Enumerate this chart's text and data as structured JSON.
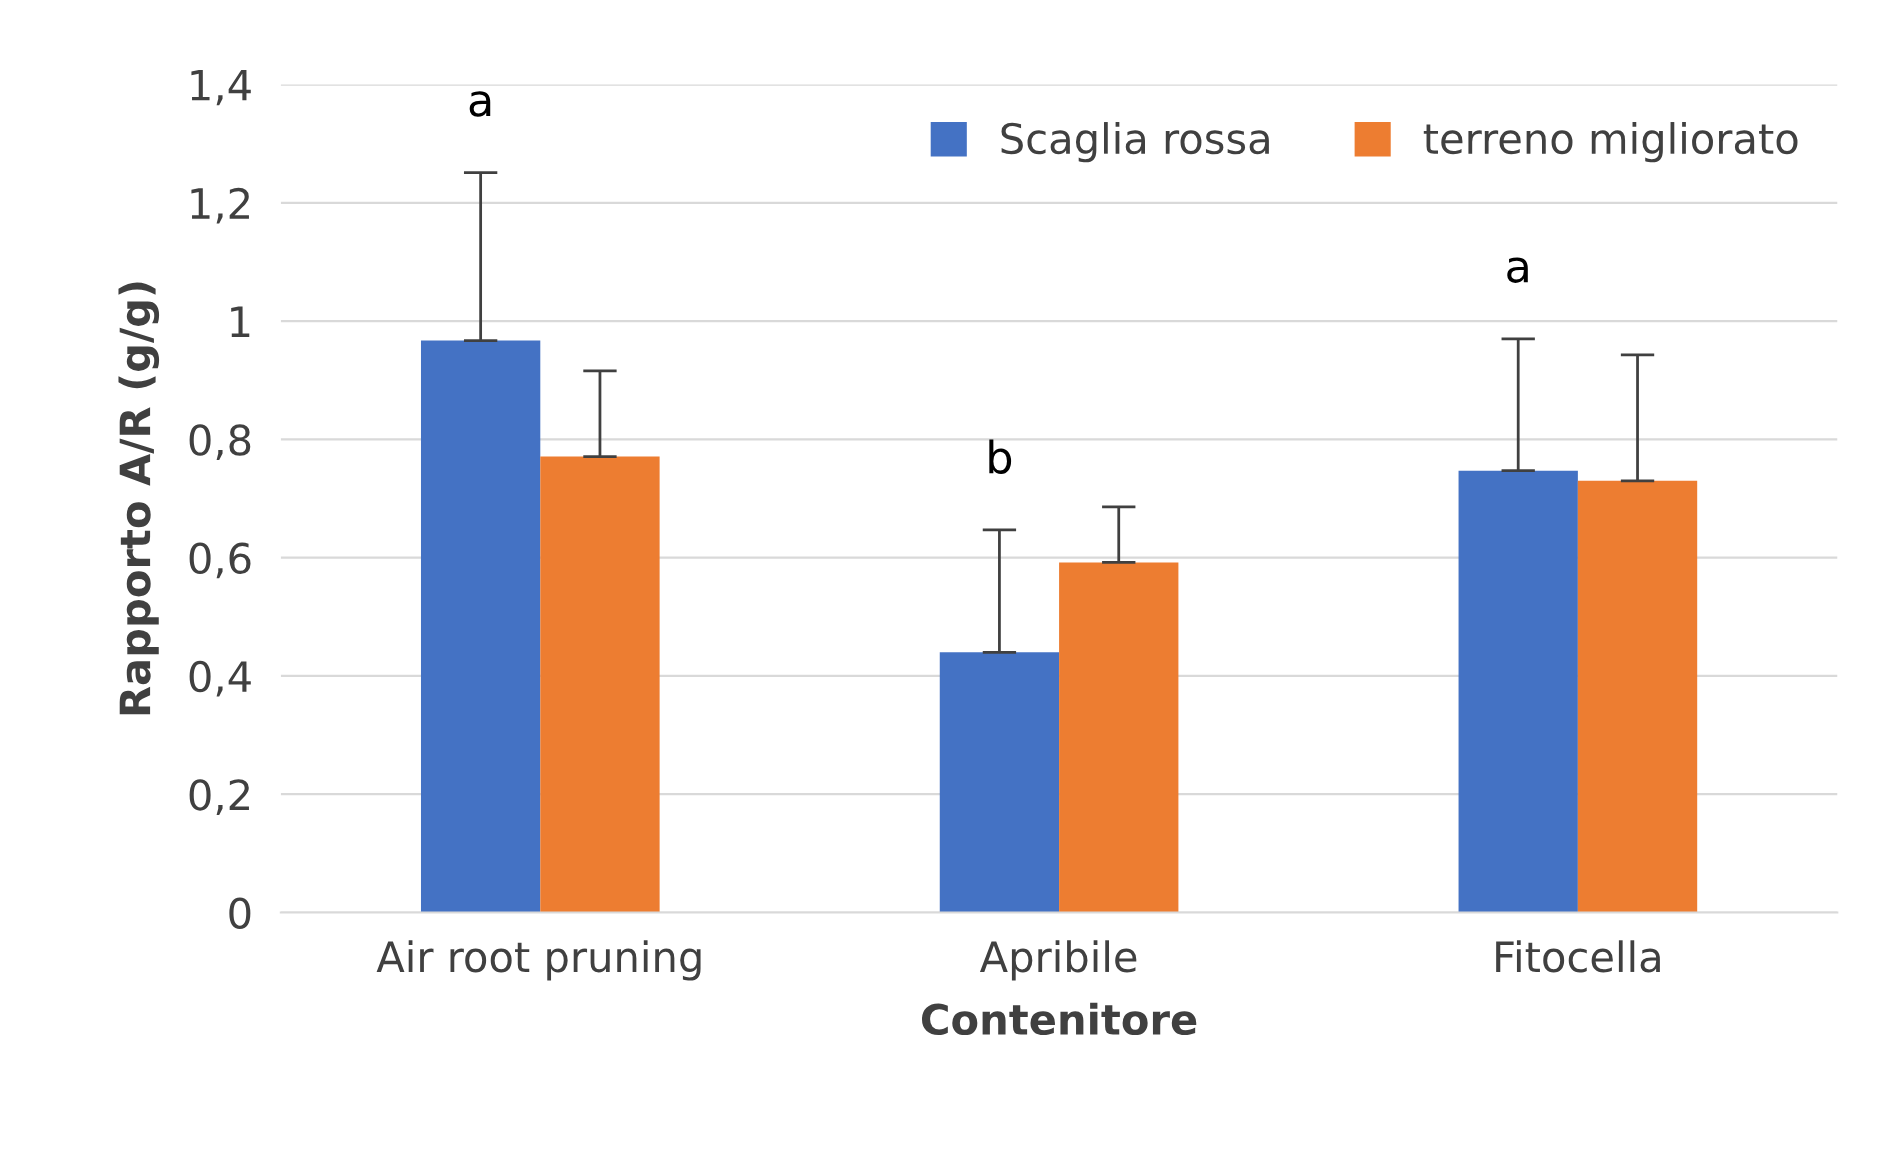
{
  "chart_data": {
    "type": "bar",
    "xlabel": "Contenitore",
    "ylabel": "Rapporto A/R (g/g)",
    "categories": [
      "Air root pruning",
      "Apribile",
      "Fitocella"
    ],
    "series": [
      {
        "name": "Scaglia rossa",
        "color": "#4472c4",
        "values": [
          0.967,
          0.44,
          0.747
        ],
        "errors": [
          [
            0.967,
            1.251
          ],
          [
            0.44,
            0.647
          ],
          [
            0.747,
            0.97
          ]
        ]
      },
      {
        "name": "terreno migliorato",
        "color": "#ed7d31",
        "values": [
          0.771,
          0.592,
          0.73
        ],
        "errors": [
          [
            0.771,
            0.916
          ],
          [
            0.592,
            0.686
          ],
          [
            0.73,
            0.943
          ]
        ]
      }
    ],
    "ylim": [
      0,
      1.4
    ],
    "yticks": [
      0,
      {
        "value": 0.2,
        "label": "0,2"
      },
      {
        "value": 0.4,
        "label": "0,4"
      },
      {
        "value": 0.6,
        "label": "0,6"
      },
      {
        "value": 0.8,
        "label": "0,8"
      },
      1,
      {
        "value": 1.2,
        "label": "1,2"
      },
      {
        "value": 1.4,
        "label": "1,4"
      }
    ],
    "grid": "y",
    "legend": "top right",
    "annotations": [
      "a",
      "b",
      "a"
    ]
  }
}
